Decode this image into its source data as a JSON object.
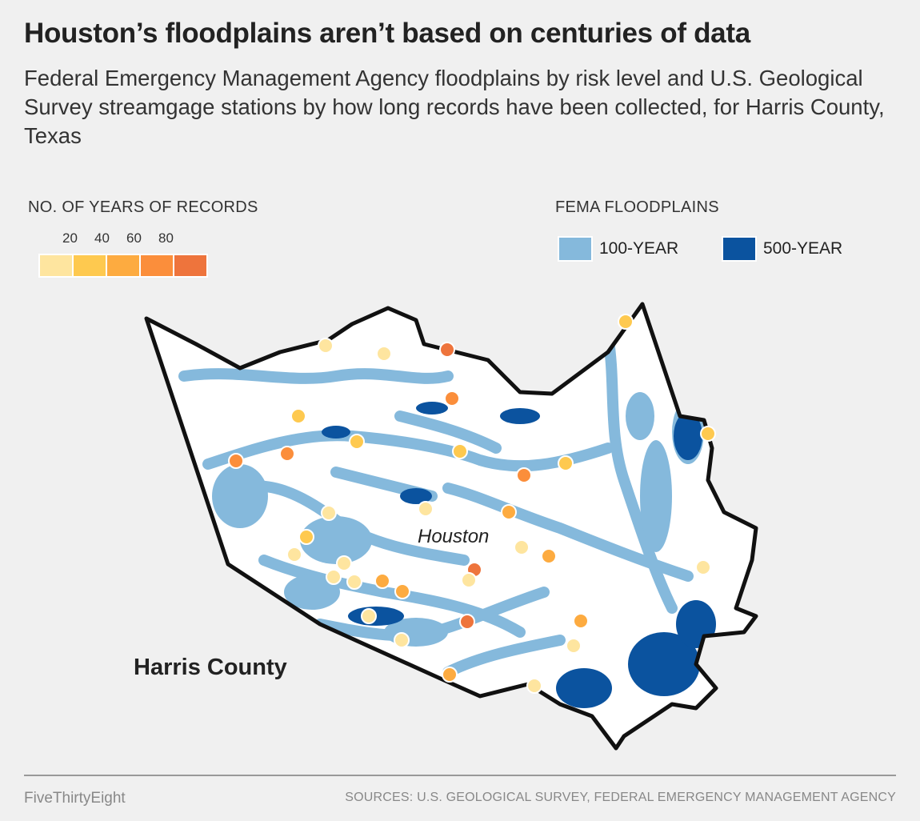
{
  "header": {
    "title": "Houston’s floodplains aren’t based on centuries of data",
    "subtitle": "Federal Emergency Management Agency floodplains by risk level and U.S. Geological Survey streamgage stations by how long records have been collected, for Harris County, Texas"
  },
  "legend_years": {
    "title": "NO. OF YEARS OF RECORDS",
    "ticks": [
      "20",
      "40",
      "60",
      "80"
    ],
    "colors": [
      "#fee59f",
      "#fec94f",
      "#fdab40",
      "#fb8e3b",
      "#ee743c"
    ]
  },
  "legend_floodplains": {
    "title": "FEMA FLOODPLAINS",
    "items": [
      {
        "label": "100-YEAR",
        "color": "#85b9dc"
      },
      {
        "label": "500-YEAR",
        "color": "#0b539f"
      }
    ]
  },
  "map": {
    "county_label": "Harris County",
    "city_label": "Houston",
    "outline_color": "#111111",
    "land_color": "#ffffff",
    "station_year_classes": [
      0,
      0,
      4,
      1,
      3,
      1,
      1,
      3,
      3,
      1,
      3,
      1,
      1,
      0,
      2,
      0,
      1,
      0,
      0,
      2,
      0,
      4,
      0,
      0,
      0,
      2,
      2,
      0,
      0,
      4,
      2,
      0,
      0,
      2,
      0
    ]
  },
  "footer": {
    "brand": "FiveThirtyEight",
    "sources": "SOURCES: U.S. GEOLOGICAL SURVEY, FEDERAL EMERGENCY MANAGEMENT AGENCY"
  }
}
